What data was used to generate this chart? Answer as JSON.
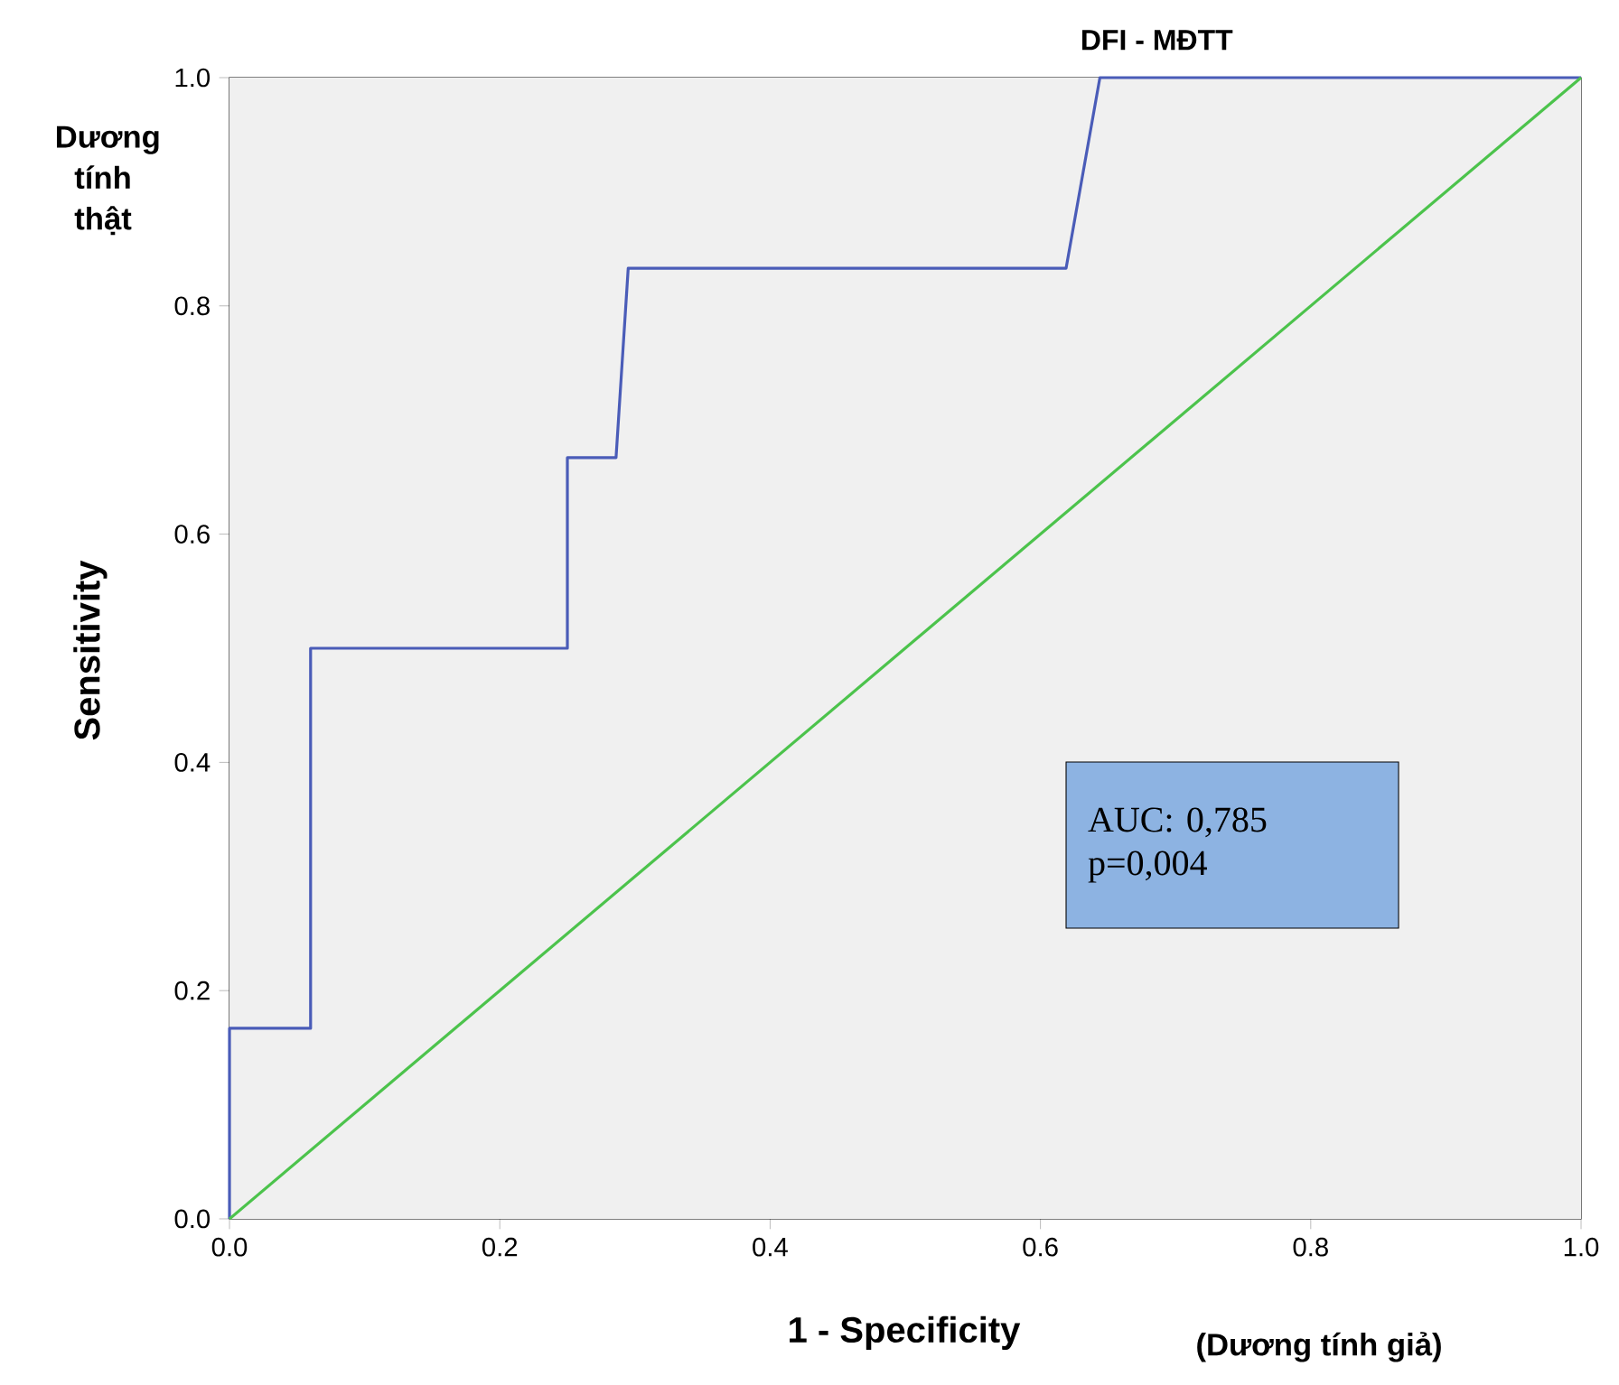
{
  "chart_data": {
    "type": "line",
    "title": "DFI - MĐTT",
    "xlabel": "1 - Specificity",
    "ylabel": "Sensitivity",
    "annotations": [
      "Dương tính thật",
      "(Dương tính giả)",
      "AUC: 0,785",
      "p=0,004"
    ],
    "series": [
      {
        "color": "#4a5cb8",
        "x": [
          0,
          0,
          0.06,
          0.06,
          0.25,
          0.25,
          0.286,
          0.295,
          0.619,
          0.644,
          1
        ],
        "values": [
          0,
          0.167,
          0.167,
          0.5,
          0.5,
          0.667,
          0.667,
          0.833,
          0.833,
          1,
          1
        ]
      },
      {
        "color": "#4cc34c",
        "x": [
          0,
          1
        ],
        "values": [
          0,
          1
        ]
      }
    ],
    "xlim": [
      0,
      1
    ],
    "ylim": [
      0,
      1
    ],
    "xticks": [
      {
        "value": 0,
        "label": "0.0"
      },
      0.2,
      0.4,
      0.6,
      0.8,
      {
        "value": 1,
        "label": "1.0"
      }
    ],
    "yticks": [
      {
        "value": 0,
        "label": "0.0"
      },
      0.2,
      0.4,
      0.6,
      0.8,
      {
        "value": 1,
        "label": "1.0"
      }
    ],
    "grid": false,
    "marker": "none",
    "line_style": "solid"
  }
}
